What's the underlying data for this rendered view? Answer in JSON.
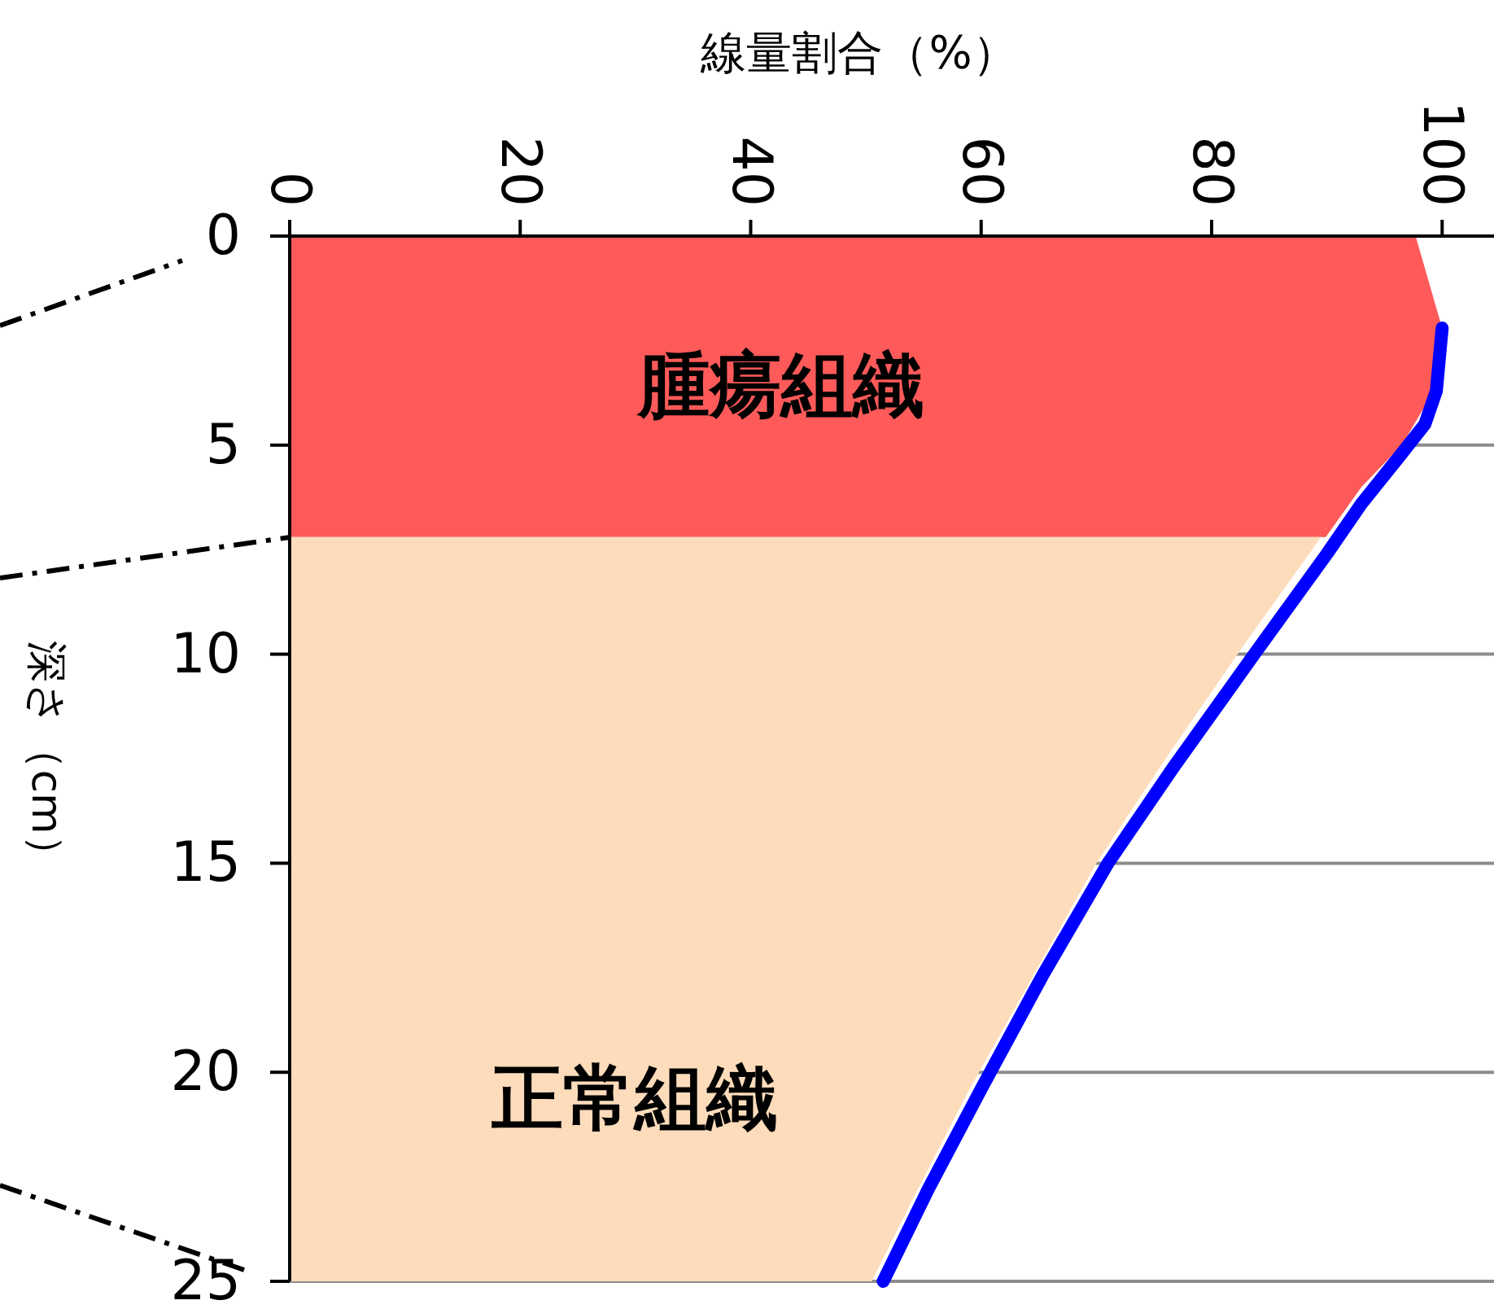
{
  "chart_data": {
    "type": "line",
    "orientation": "horizontal",
    "xlabel": "線量割合（%）",
    "ylabel": "深さ（cm）",
    "xlim": [
      0,
      104.5
    ],
    "xticks": [
      0,
      20,
      40,
      60,
      80,
      100
    ],
    "ylim": [
      25,
      0
    ],
    "yticks": [
      0,
      5,
      10,
      15,
      20,
      25
    ],
    "grid": "y",
    "series": [
      {
        "type": "area",
        "color": "#ff5a5a",
        "values": [
          97.7,
          100,
          99.3,
          96.5,
          93,
          89.9
        ],
        "x": [
          0,
          2.2,
          3.7,
          5,
          6,
          7.2
        ]
      },
      {
        "type": "area",
        "color": "#fddcbb",
        "values": [
          89.5,
          83,
          76,
          70,
          64.5,
          59,
          54.5,
          50.5
        ],
        "x": [
          7.2,
          9.7,
          12.5,
          15,
          17.7,
          20.4,
          22.8,
          25
        ]
      },
      {
        "color": "#0000ff",
        "values": [
          100,
          99.5,
          98.5,
          96.5,
          93,
          90,
          83.7,
          76.7,
          71,
          65.3,
          60,
          55.4,
          51.5
        ],
        "x": [
          2.2,
          3.7,
          4.5,
          5.2,
          6.4,
          7.6,
          10,
          12.7,
          15,
          17.7,
          20.4,
          22.8,
          25
        ]
      }
    ],
    "annotations": [
      "腫瘍組織",
      "正常組織"
    ]
  }
}
